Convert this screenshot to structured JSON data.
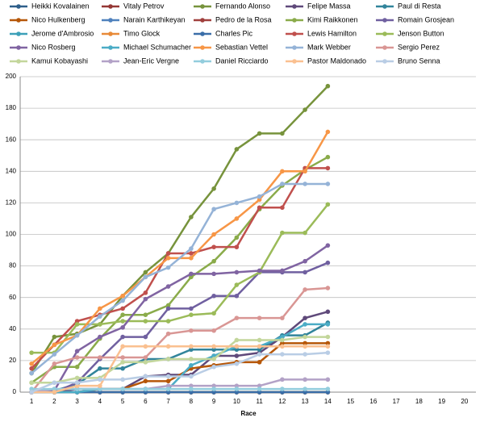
{
  "chart_data": {
    "type": "line",
    "x_label": "Race",
    "categories": [
      "1",
      "2",
      "3",
      "4",
      "5",
      "6",
      "7",
      "8",
      "9",
      "10",
      "11",
      "12",
      "13",
      "14",
      "15",
      "16",
      "17",
      "18",
      "19",
      "20"
    ],
    "ylim": [
      0,
      200
    ],
    "yticks": [
      0,
      20,
      40,
      60,
      80,
      100,
      120,
      140,
      160,
      180,
      200
    ],
    "grid": true,
    "series": [
      {
        "name": "Heikki Kovalainen",
        "color": "#2e5f8a",
        "values": [
          0,
          0,
          0,
          0,
          0,
          0,
          0,
          0,
          0,
          0,
          0,
          0,
          0,
          0,
          null,
          null,
          null,
          null,
          null,
          null
        ]
      },
      {
        "name": "Vitaly Petrov",
        "color": "#953735",
        "values": [
          0,
          0,
          0,
          0,
          0,
          0,
          0,
          0,
          0,
          0,
          0,
          0,
          0,
          0,
          null,
          null,
          null,
          null,
          null,
          null
        ]
      },
      {
        "name": "Fernando Alonso",
        "color": "#77933c",
        "values": [
          12,
          35,
          37,
          43,
          61,
          76,
          88,
          111,
          129,
          154,
          164,
          164,
          179,
          194,
          null,
          null,
          null,
          null,
          null,
          null
        ]
      },
      {
        "name": "Felipe Massa",
        "color": "#5f497a",
        "values": [
          0,
          0,
          2,
          2,
          2,
          10,
          11,
          11,
          23,
          23,
          25,
          35,
          47,
          51,
          null,
          null,
          null,
          null,
          null,
          null
        ]
      },
      {
        "name": "Paul di Resta",
        "color": "#31849b",
        "values": [
          0,
          1,
          5,
          15,
          15,
          21,
          21,
          27,
          27,
          27,
          27,
          36,
          36,
          44,
          null,
          null,
          null,
          null,
          null,
          null
        ]
      },
      {
        "name": "Nico Hulkenberg",
        "color": "#b65708",
        "values": [
          0,
          0,
          0,
          2,
          2,
          7,
          7,
          15,
          17,
          19,
          19,
          31,
          31,
          31,
          null,
          null,
          null,
          null,
          null,
          null
        ]
      },
      {
        "name": "Narain Karthikeyan",
        "color": "#4f81bd",
        "values": [
          0,
          0,
          0,
          0,
          0,
          0,
          0,
          0,
          0,
          0,
          0,
          0,
          0,
          0,
          null,
          null,
          null,
          null,
          null,
          null
        ]
      },
      {
        "name": "Pedro de la Rosa",
        "color": "#a0403d",
        "values": [
          0,
          0,
          0,
          0,
          0,
          0,
          0,
          0,
          0,
          0,
          0,
          0,
          0,
          0,
          null,
          null,
          null,
          null,
          null,
          null
        ]
      },
      {
        "name": "Kimi Raikkonen",
        "color": "#8aab4a",
        "values": [
          6,
          16,
          16,
          34,
          49,
          49,
          55,
          73,
          83,
          98,
          116,
          131,
          141,
          149,
          null,
          null,
          null,
          null,
          null,
          null
        ]
      },
      {
        "name": "Romain Grosjean",
        "color": "#7060a0",
        "values": [
          0,
          0,
          6,
          21,
          35,
          35,
          53,
          53,
          61,
          61,
          76,
          76,
          76,
          82,
          null,
          null,
          null,
          null,
          null,
          null
        ]
      },
      {
        "name": "Jerome d'Ambrosio",
        "color": "#3ca0b8",
        "values": [
          0,
          0,
          0,
          0,
          0,
          0,
          0,
          0,
          0,
          0,
          0,
          0,
          0,
          0,
          null,
          null,
          null,
          null,
          null,
          null
        ]
      },
      {
        "name": "Timo Glock",
        "color": "#e88a38",
        "values": [
          0,
          0,
          0,
          0,
          0,
          0,
          0,
          0,
          0,
          0,
          0,
          0,
          0,
          0,
          null,
          null,
          null,
          null,
          null,
          null
        ]
      },
      {
        "name": "Charles Pic",
        "color": "#3a6ea8",
        "values": [
          0,
          0,
          0,
          0,
          0,
          0,
          0,
          0,
          0,
          0,
          0,
          0,
          0,
          0,
          null,
          null,
          null,
          null,
          null,
          null
        ]
      },
      {
        "name": "Lewis Hamilton",
        "color": "#c0504d",
        "values": [
          15,
          30,
          45,
          49,
          53,
          63,
          88,
          88,
          92,
          92,
          117,
          117,
          142,
          142,
          null,
          null,
          null,
          null,
          null,
          null
        ]
      },
      {
        "name": "Jenson Button",
        "color": "#9bbb59",
        "values": [
          25,
          25,
          43,
          43,
          45,
          45,
          45,
          49,
          50,
          68,
          76,
          101,
          101,
          119,
          null,
          null,
          null,
          null,
          null,
          null
        ]
      },
      {
        "name": "Nico Rosberg",
        "color": "#8064a2",
        "values": [
          0,
          1,
          26,
          35,
          41,
          59,
          67,
          75,
          75,
          76,
          77,
          77,
          83,
          93,
          null,
          null,
          null,
          null,
          null,
          null
        ]
      },
      {
        "name": "Michael Schumacher",
        "color": "#4bacc6",
        "values": [
          0,
          0,
          0,
          2,
          2,
          2,
          2,
          17,
          23,
          29,
          29,
          35,
          43,
          43,
          null,
          null,
          null,
          null,
          null,
          null
        ]
      },
      {
        "name": "Sebastian Vettel",
        "color": "#f79646",
        "values": [
          18,
          30,
          36,
          53,
          61,
          73,
          85,
          85,
          100,
          110,
          122,
          140,
          140,
          165,
          null,
          null,
          null,
          null,
          null,
          null
        ]
      },
      {
        "name": "Mark Webber",
        "color": "#95b3d7",
        "values": [
          12,
          24,
          36,
          48,
          58,
          73,
          79,
          91,
          116,
          120,
          124,
          132,
          132,
          132,
          null,
          null,
          null,
          null,
          null,
          null
        ]
      },
      {
        "name": "Sergio Perez",
        "color": "#d99694",
        "values": [
          0,
          18,
          22,
          22,
          22,
          22,
          37,
          39,
          39,
          47,
          47,
          47,
          65,
          66,
          null,
          null,
          null,
          null,
          null,
          null
        ]
      },
      {
        "name": "Kamui Kobayashi",
        "color": "#c3d69b",
        "values": [
          6,
          6,
          9,
          9,
          19,
          19,
          21,
          21,
          21,
          33,
          33,
          33,
          35,
          35,
          null,
          null,
          null,
          null,
          null,
          null
        ]
      },
      {
        "name": "Jean-Eric Vergne",
        "color": "#b3a2c7",
        "values": [
          0,
          2,
          2,
          2,
          2,
          2,
          4,
          4,
          4,
          4,
          4,
          8,
          8,
          8,
          null,
          null,
          null,
          null,
          null,
          null
        ]
      },
      {
        "name": "Daniel Ricciardo",
        "color": "#93cddd",
        "values": [
          2,
          2,
          2,
          2,
          2,
          2,
          2,
          2,
          2,
          2,
          2,
          2,
          2,
          2,
          null,
          null,
          null,
          null,
          null,
          null
        ]
      },
      {
        "name": "Pastor Maldonado",
        "color": "#fac090",
        "values": [
          0,
          0,
          4,
          4,
          29,
          29,
          29,
          29,
          29,
          29,
          29,
          29,
          29,
          29,
          null,
          null,
          null,
          null,
          null,
          null
        ]
      },
      {
        "name": "Bruno Senna",
        "color": "#b9cde5",
        "values": [
          0,
          6,
          6,
          8,
          8,
          10,
          10,
          10,
          16,
          18,
          24,
          24,
          24,
          25,
          null,
          null,
          null,
          null,
          null,
          null
        ]
      }
    ]
  }
}
